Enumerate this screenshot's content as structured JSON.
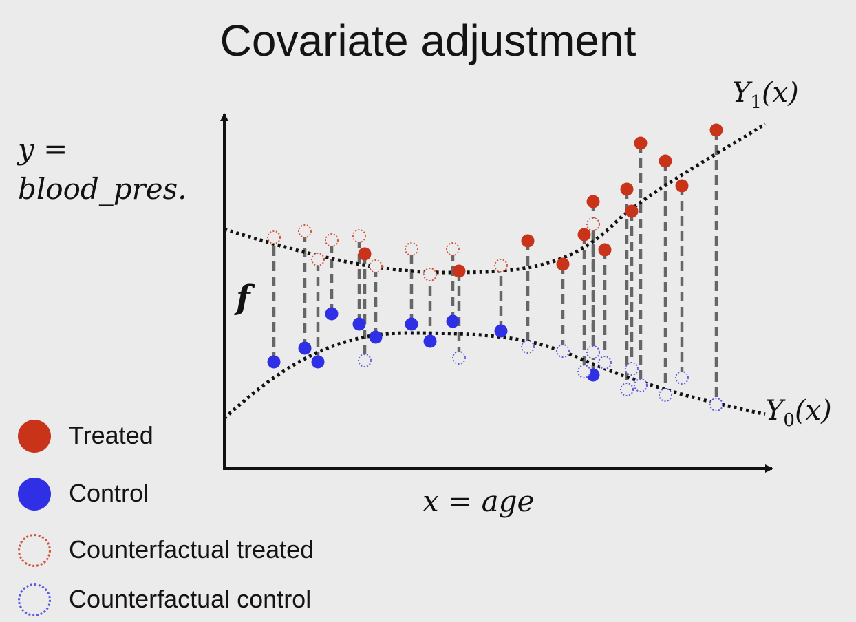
{
  "title": "Covariate adjustment",
  "y_axis_label_line1": "y =",
  "y_axis_label_line2": "blood_pres.",
  "x_axis_label": "x = age",
  "function_label": "f",
  "curve_labels": {
    "y1": {
      "main": "Y",
      "sub": "1",
      "arg": "(x)"
    },
    "y0": {
      "main": "Y",
      "sub": "0",
      "arg": "(x)"
    }
  },
  "colors": {
    "treated": "#c8331a",
    "control": "#2f2fe6",
    "counterfactual_treated": "#d2533c",
    "counterfactual_control": "#5b5be0",
    "curve": "#111111",
    "connector": "#666666",
    "axis": "#111111",
    "background": "#ebebeb"
  },
  "legend": [
    {
      "label": "Treated",
      "kind": "treated"
    },
    {
      "label": "Control",
      "kind": "control"
    },
    {
      "label": "Counterfactual treated",
      "kind": "counterfactual_treated"
    },
    {
      "label": "Counterfactual control",
      "kind": "counterfactual_control"
    }
  ]
}
